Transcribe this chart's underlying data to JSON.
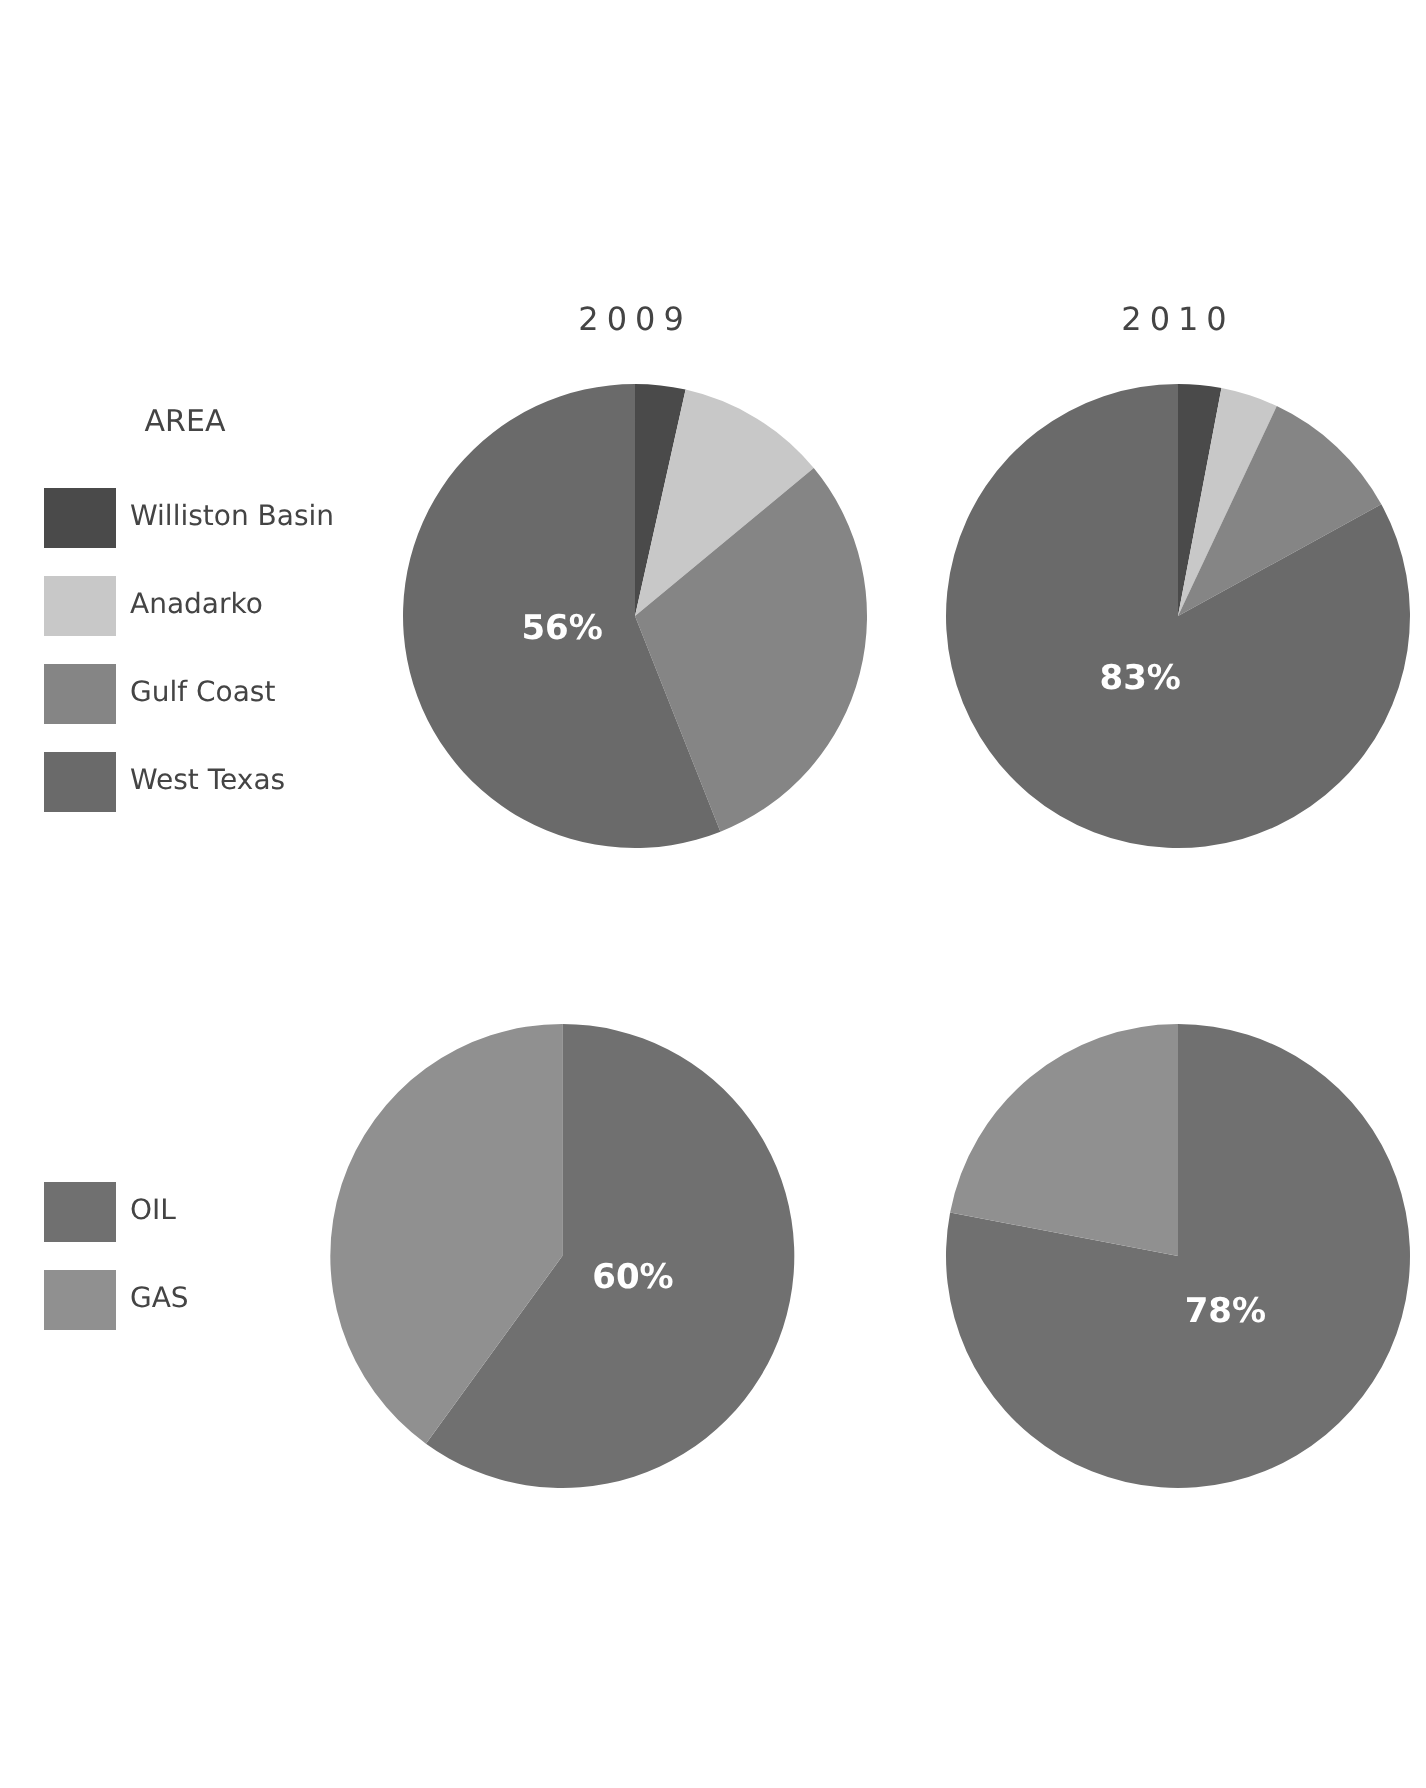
{
  "chart_data": [
    {
      "type": "pie",
      "title": "2009",
      "legend_title": "AREA",
      "legend": "left",
      "categories": [
        "Williston Basin",
        "Anadarko",
        "Gulf Coast",
        "West Texas"
      ],
      "values": [
        3.5,
        10.5,
        30,
        56
      ],
      "colors": [
        "#4a4a4a",
        "#c8c8c8",
        "#858585",
        "#6a6a6a"
      ],
      "value_labels": [
        null,
        null,
        null,
        "56%"
      ]
    },
    {
      "type": "pie",
      "title": "2010",
      "categories": [
        null,
        null,
        null,
        null
      ],
      "values": [
        3,
        4,
        10,
        83
      ],
      "colors": [
        "#4a4a4a",
        "#c8c8c8",
        "#858585",
        "#6a6a6a"
      ],
      "value_labels": [
        null,
        null,
        null,
        "83%"
      ]
    },
    {
      "type": "pie",
      "legend": "left",
      "categories": [
        "OIL",
        "GAS"
      ],
      "values": [
        60,
        40
      ],
      "colors": [
        "#707070",
        "#909090"
      ],
      "value_labels": [
        "60%",
        null
      ]
    },
    {
      "type": "pie",
      "categories": [
        null,
        null
      ],
      "values": [
        78,
        22
      ],
      "colors": [
        "#707070",
        "#909090"
      ],
      "value_labels": [
        "78%",
        null
      ]
    }
  ]
}
